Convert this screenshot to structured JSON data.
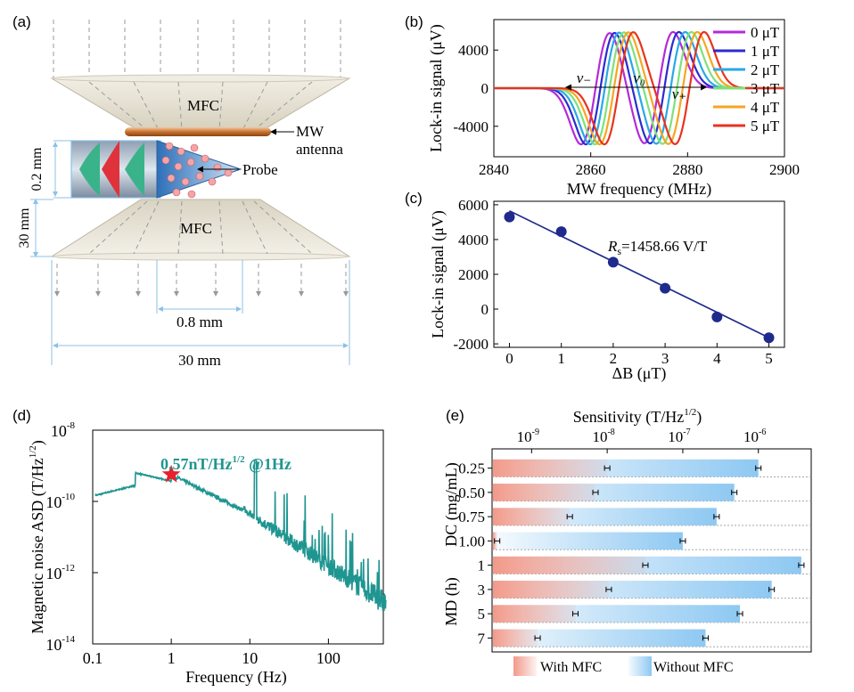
{
  "panels": {
    "a": {
      "label": "(a)",
      "mfc_top": "MFC",
      "mfc_bottom": "MFC",
      "mw_line1": "MW",
      "mw_line2": "antenna",
      "probe": "Probe",
      "dim_02": "0.2 mm",
      "dim_30v": "30 mm",
      "dim_08": "0.8 mm",
      "dim_30h": "30 mm"
    },
    "b": {
      "label": "(b)"
    },
    "c": {
      "label": "(c)"
    },
    "d": {
      "label": "(d)"
    },
    "e": {
      "label": "(e)"
    }
  },
  "colors": {
    "b_series": [
      "#b52ad9",
      "#2b2bd1",
      "#29a8e6",
      "#7ee17a",
      "#f5a623",
      "#e8331f"
    ],
    "c_points": "#1e2a8c",
    "d_line": "#1f9590",
    "d_star": "#e8202a",
    "e_with": "#f29a8a",
    "e_without": "#8ec8f2"
  },
  "chart_data": [
    {
      "id": "b",
      "type": "line",
      "xlabel": "MW frequency (MHz)",
      "ylabel": "Lock-in signal (μV)",
      "xlim": [
        2840,
        2900
      ],
      "ylim": [
        -7200,
        7200
      ],
      "xticks": [
        2840,
        2860,
        2880,
        2900
      ],
      "yticks": [
        4000,
        0,
        -4000
      ],
      "annotations": [
        "ν₋",
        "ν₀",
        "ν₊"
      ],
      "series": [
        {
          "name": "0 μT",
          "dip1": 2858.0,
          "dip2": 2871.0,
          "amp": 5900
        },
        {
          "name": "1 μT",
          "dip1": 2859.0,
          "dip2": 2872.2,
          "amp": 5900
        },
        {
          "name": "2 μT",
          "dip1": 2859.9,
          "dip2": 2873.5,
          "amp": 5900
        },
        {
          "name": "3 μT",
          "dip1": 2860.9,
          "dip2": 2874.8,
          "amp": 5900
        },
        {
          "name": "4 μT",
          "dip1": 2861.8,
          "dip2": 2876.0,
          "amp": 5900
        },
        {
          "name": "5 μT",
          "dip1": 2862.8,
          "dip2": 2877.4,
          "amp": 5900
        }
      ]
    },
    {
      "id": "c",
      "type": "scatter",
      "xlabel": "ΔB (μT)",
      "ylabel": "Lock-in signal (μV)",
      "xlim": [
        -0.3,
        5.3
      ],
      "ylim": [
        -2200,
        6200
      ],
      "xticks": [
        0,
        1,
        2,
        3,
        4,
        5
      ],
      "yticks": [
        6000,
        4000,
        2000,
        0,
        -2000
      ],
      "x": [
        0,
        1,
        2,
        3,
        4,
        5
      ],
      "y": [
        5300,
        4450,
        2700,
        1200,
        -450,
        -1650
      ],
      "fit": {
        "slope": -1458.66,
        "intercept": 5650
      },
      "annotation_sym": "R",
      "annotation_sub": "s",
      "annotation_text": "=1458.66 V/T"
    },
    {
      "id": "d",
      "type": "line",
      "xlabel": "Frequency (Hz)",
      "ylabel_main": "Magnetic noise ASD (T/Hz",
      "ylabel_sup": "1/2",
      "ylabel_close": ")",
      "xscale": "log",
      "yscale": "log",
      "xlim": [
        0.1,
        500
      ],
      "ylim": [
        1e-14,
        1e-08
      ],
      "xticks": [
        0.1,
        1,
        10,
        100
      ],
      "xticklabels": [
        "0.1",
        "1",
        "10",
        "100"
      ],
      "yticks": [
        1e-08,
        1e-10,
        1e-12,
        1e-14
      ],
      "yticklabels": [
        "10",
        "10",
        "10",
        "10"
      ],
      "ytickexp": [
        "-8",
        "-10",
        "-12",
        "-14"
      ],
      "annotation_main": "0.57nT/Hz",
      "annotation_sup": "1/2",
      "annotation_tail": " @1Hz",
      "star": {
        "x": 1,
        "y": 5.7e-10
      }
    },
    {
      "id": "e",
      "type": "bar",
      "xlabel_main": "Sensitivity (T/Hz",
      "xlabel_sup": "1/2",
      "xlabel_close": ")",
      "xscale": "log",
      "xlim": [
        3e-10,
        5e-06
      ],
      "xticks": [
        1e-09,
        1e-08,
        1e-07,
        1e-06
      ],
      "xticklabels": [
        "10",
        "10",
        "10",
        "10"
      ],
      "xtickexp": [
        "-9",
        "-8",
        "-7",
        "-6"
      ],
      "groups": [
        {
          "label": "DC (mg/mL)",
          "categories": [
            "0.25",
            "0.50",
            "0.75",
            "1.00"
          ]
        },
        {
          "label": "MD (h)",
          "categories": [
            "1",
            "3",
            "5",
            "7"
          ]
        }
      ],
      "series": [
        {
          "name": "With MFC",
          "values": [
            1e-08,
            7e-09,
            3.2e-09,
            3.5e-10,
            3.2e-08,
            1.05e-08,
            3.8e-09,
            1.2e-09
          ]
        },
        {
          "name": "Without MFC",
          "values": [
            1e-06,
            4.8e-07,
            2.8e-07,
            1e-07,
            3.7e-06,
            1.5e-06,
            5.7e-07,
            2e-07
          ]
        }
      ]
    }
  ]
}
